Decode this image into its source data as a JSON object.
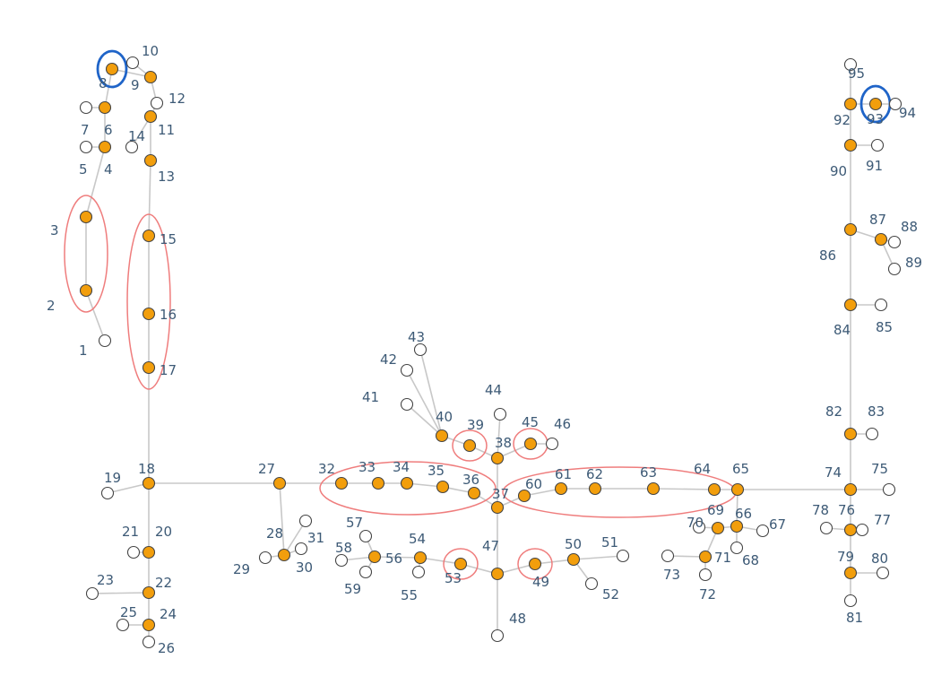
{
  "colors": {
    "active": "#f29e0c",
    "inactive": "#ffffff",
    "node_stroke": "#444444",
    "edge": "#c8c8c8",
    "label": "#3d5a76",
    "red_highlight": "#ef7d7d",
    "blue_highlight": "#1f64c8"
  },
  "nodes": [
    {
      "id": "1",
      "active": false
    },
    {
      "id": "2",
      "active": true
    },
    {
      "id": "3",
      "active": true
    },
    {
      "id": "4",
      "active": true
    },
    {
      "id": "5",
      "active": false
    },
    {
      "id": "6",
      "active": true
    },
    {
      "id": "7",
      "active": false
    },
    {
      "id": "8",
      "active": true
    },
    {
      "id": "9",
      "active": true
    },
    {
      "id": "10",
      "active": false
    },
    {
      "id": "11",
      "active": true
    },
    {
      "id": "12",
      "active": false
    },
    {
      "id": "13",
      "active": true
    },
    {
      "id": "14",
      "active": false
    },
    {
      "id": "15",
      "active": true
    },
    {
      "id": "16",
      "active": true
    },
    {
      "id": "17",
      "active": true
    },
    {
      "id": "18",
      "active": true
    },
    {
      "id": "19",
      "active": false
    },
    {
      "id": "20",
      "active": true
    },
    {
      "id": "21",
      "active": false
    },
    {
      "id": "22",
      "active": true
    },
    {
      "id": "23",
      "active": false
    },
    {
      "id": "24",
      "active": true
    },
    {
      "id": "25",
      "active": false
    },
    {
      "id": "26",
      "active": false
    },
    {
      "id": "27",
      "active": true
    },
    {
      "id": "28",
      "active": true
    },
    {
      "id": "29",
      "active": false
    },
    {
      "id": "30",
      "active": false
    },
    {
      "id": "31",
      "active": false
    },
    {
      "id": "32",
      "active": true
    },
    {
      "id": "33",
      "active": true
    },
    {
      "id": "34",
      "active": true
    },
    {
      "id": "35",
      "active": true
    },
    {
      "id": "36",
      "active": true
    },
    {
      "id": "37",
      "active": true
    },
    {
      "id": "38",
      "active": true
    },
    {
      "id": "39",
      "active": true
    },
    {
      "id": "40",
      "active": true
    },
    {
      "id": "41",
      "active": false
    },
    {
      "id": "42",
      "active": false
    },
    {
      "id": "43",
      "active": false
    },
    {
      "id": "44",
      "active": false
    },
    {
      "id": "45",
      "active": true
    },
    {
      "id": "46",
      "active": false
    },
    {
      "id": "47",
      "active": true
    },
    {
      "id": "48",
      "active": false
    },
    {
      "id": "49",
      "active": true
    },
    {
      "id": "50",
      "active": true
    },
    {
      "id": "51",
      "active": false
    },
    {
      "id": "52",
      "active": false
    },
    {
      "id": "53",
      "active": true
    },
    {
      "id": "54",
      "active": true
    },
    {
      "id": "55",
      "active": false
    },
    {
      "id": "56",
      "active": true
    },
    {
      "id": "57",
      "active": false
    },
    {
      "id": "58",
      "active": false
    },
    {
      "id": "59",
      "active": false
    },
    {
      "id": "60",
      "active": true
    },
    {
      "id": "61",
      "active": true
    },
    {
      "id": "62",
      "active": true
    },
    {
      "id": "63",
      "active": true
    },
    {
      "id": "64",
      "active": true
    },
    {
      "id": "65",
      "active": true
    },
    {
      "id": "66",
      "active": true
    },
    {
      "id": "67",
      "active": false
    },
    {
      "id": "68",
      "active": false
    },
    {
      "id": "69",
      "active": true
    },
    {
      "id": "70",
      "active": false
    },
    {
      "id": "71",
      "active": true
    },
    {
      "id": "72",
      "active": false
    },
    {
      "id": "73",
      "active": false
    },
    {
      "id": "74",
      "active": true
    },
    {
      "id": "75",
      "active": false
    },
    {
      "id": "76",
      "active": true
    },
    {
      "id": "77",
      "active": false
    },
    {
      "id": "78",
      "active": false
    },
    {
      "id": "79",
      "active": true
    },
    {
      "id": "80",
      "active": false
    },
    {
      "id": "81",
      "active": false
    },
    {
      "id": "82",
      "active": true
    },
    {
      "id": "83",
      "active": false
    },
    {
      "id": "84",
      "active": true
    },
    {
      "id": "85",
      "active": false
    },
    {
      "id": "86",
      "active": true
    },
    {
      "id": "87",
      "active": true
    },
    {
      "id": "88",
      "active": false
    },
    {
      "id": "89",
      "active": false
    },
    {
      "id": "90",
      "active": true
    },
    {
      "id": "91",
      "active": false
    },
    {
      "id": "92",
      "active": true
    },
    {
      "id": "93",
      "active": true
    },
    {
      "id": "94",
      "active": false
    },
    {
      "id": "95",
      "active": false
    }
  ],
  "edges": [
    [
      "1",
      "2"
    ],
    [
      "2",
      "3"
    ],
    [
      "3",
      "4"
    ],
    [
      "4",
      "5"
    ],
    [
      "4",
      "6"
    ],
    [
      "6",
      "7"
    ],
    [
      "6",
      "8"
    ],
    [
      "8",
      "9"
    ],
    [
      "9",
      "10"
    ],
    [
      "9",
      "12"
    ],
    [
      "12",
      "11"
    ],
    [
      "11",
      "14"
    ],
    [
      "11",
      "13"
    ],
    [
      "13",
      "15"
    ],
    [
      "15",
      "16"
    ],
    [
      "16",
      "17"
    ],
    [
      "17",
      "18"
    ],
    [
      "18",
      "19"
    ],
    [
      "18",
      "20"
    ],
    [
      "20",
      "21"
    ],
    [
      "20",
      "22"
    ],
    [
      "22",
      "23"
    ],
    [
      "22",
      "24"
    ],
    [
      "24",
      "25"
    ],
    [
      "24",
      "26"
    ],
    [
      "18",
      "27"
    ],
    [
      "27",
      "28"
    ],
    [
      "28",
      "29"
    ],
    [
      "28",
      "30"
    ],
    [
      "28",
      "31"
    ],
    [
      "27",
      "32"
    ],
    [
      "32",
      "33"
    ],
    [
      "33",
      "34"
    ],
    [
      "34",
      "35"
    ],
    [
      "35",
      "36"
    ],
    [
      "36",
      "37"
    ],
    [
      "37",
      "38"
    ],
    [
      "38",
      "39"
    ],
    [
      "39",
      "40"
    ],
    [
      "40",
      "41"
    ],
    [
      "40",
      "42"
    ],
    [
      "40",
      "43"
    ],
    [
      "38",
      "44"
    ],
    [
      "38",
      "45"
    ],
    [
      "45",
      "46"
    ],
    [
      "37",
      "47"
    ],
    [
      "47",
      "48"
    ],
    [
      "47",
      "49"
    ],
    [
      "49",
      "50"
    ],
    [
      "50",
      "51"
    ],
    [
      "50",
      "52"
    ],
    [
      "47",
      "53"
    ],
    [
      "53",
      "54"
    ],
    [
      "54",
      "55"
    ],
    [
      "54",
      "56"
    ],
    [
      "56",
      "57"
    ],
    [
      "56",
      "58"
    ],
    [
      "56",
      "59"
    ],
    [
      "37",
      "60"
    ],
    [
      "60",
      "61"
    ],
    [
      "61",
      "62"
    ],
    [
      "62",
      "63"
    ],
    [
      "63",
      "64"
    ],
    [
      "64",
      "65"
    ],
    [
      "65",
      "66"
    ],
    [
      "66",
      "67"
    ],
    [
      "66",
      "68"
    ],
    [
      "66",
      "69"
    ],
    [
      "69",
      "70"
    ],
    [
      "69",
      "71"
    ],
    [
      "71",
      "72"
    ],
    [
      "71",
      "73"
    ],
    [
      "65",
      "74"
    ],
    [
      "74",
      "75"
    ],
    [
      "74",
      "76"
    ],
    [
      "76",
      "77"
    ],
    [
      "76",
      "78"
    ],
    [
      "76",
      "79"
    ],
    [
      "79",
      "80"
    ],
    [
      "79",
      "81"
    ],
    [
      "74",
      "82"
    ],
    [
      "82",
      "83"
    ],
    [
      "82",
      "84"
    ],
    [
      "84",
      "85"
    ],
    [
      "84",
      "86"
    ],
    [
      "86",
      "87"
    ],
    [
      "87",
      "88"
    ],
    [
      "87",
      "89"
    ],
    [
      "86",
      "90"
    ],
    [
      "90",
      "91"
    ],
    [
      "90",
      "92"
    ],
    [
      "92",
      "93"
    ],
    [
      "93",
      "94"
    ],
    [
      "92",
      "95"
    ]
  ],
  "red_groups": [
    [
      "2",
      "3"
    ],
    [
      "15",
      "16",
      "17"
    ],
    [
      "32",
      "33",
      "34",
      "35",
      "36"
    ],
    [
      "39"
    ],
    [
      "45"
    ],
    [
      "53"
    ],
    [
      "49"
    ],
    [
      "60",
      "61",
      "62",
      "63",
      "64"
    ]
  ],
  "blue_groups": [
    [
      "8"
    ],
    [
      "93"
    ]
  ]
}
